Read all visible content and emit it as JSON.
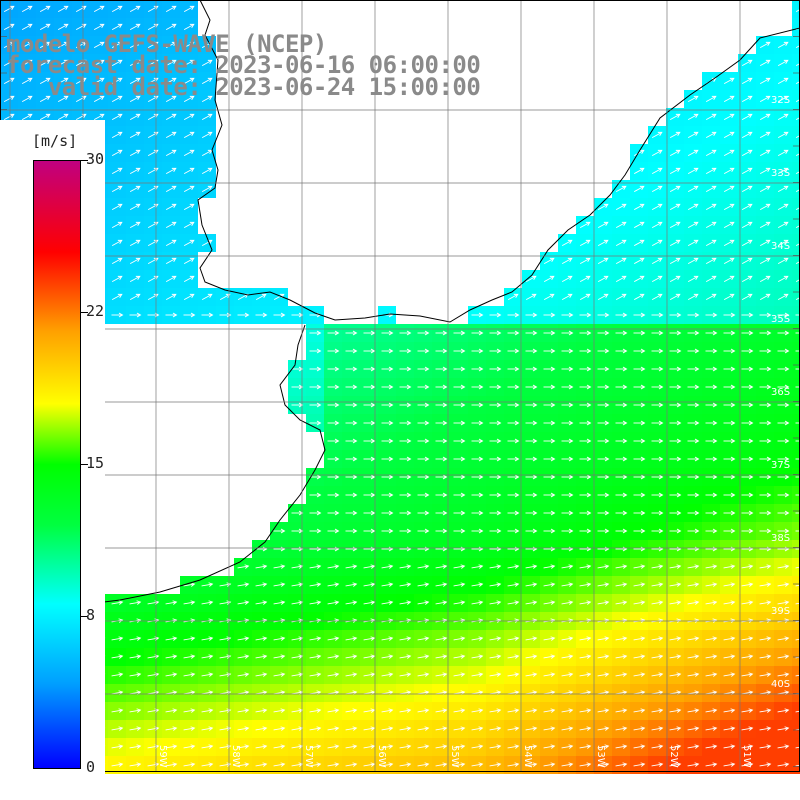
{
  "title": {
    "line1": "modelo GEFS-WAVE (NCEP)",
    "line2": "forecast date: 2023-06-16 06:00:00",
    "line3": "   valid date: 2023-06-24 15:00:00"
  },
  "colorbar": {
    "unit": "[m/s]",
    "ticks": [
      "30",
      "22",
      "15",
      "8",
      "0"
    ],
    "stops": [
      "#0000ff",
      "#00a0ff",
      "#00ffff",
      "#00ff40",
      "#00ff00",
      "#ffff00",
      "#ffa000",
      "#ff0000",
      "#c00080"
    ]
  },
  "map": {
    "lat_labels": [
      "32S",
      "33S",
      "34S",
      "35S",
      "36S",
      "37S",
      "38S",
      "39S",
      "40S"
    ],
    "lon_labels": [
      "61W",
      "60W",
      "59W",
      "58W",
      "57W",
      "56W",
      "55W",
      "54W",
      "53W",
      "52W",
      "51W"
    ]
  }
}
